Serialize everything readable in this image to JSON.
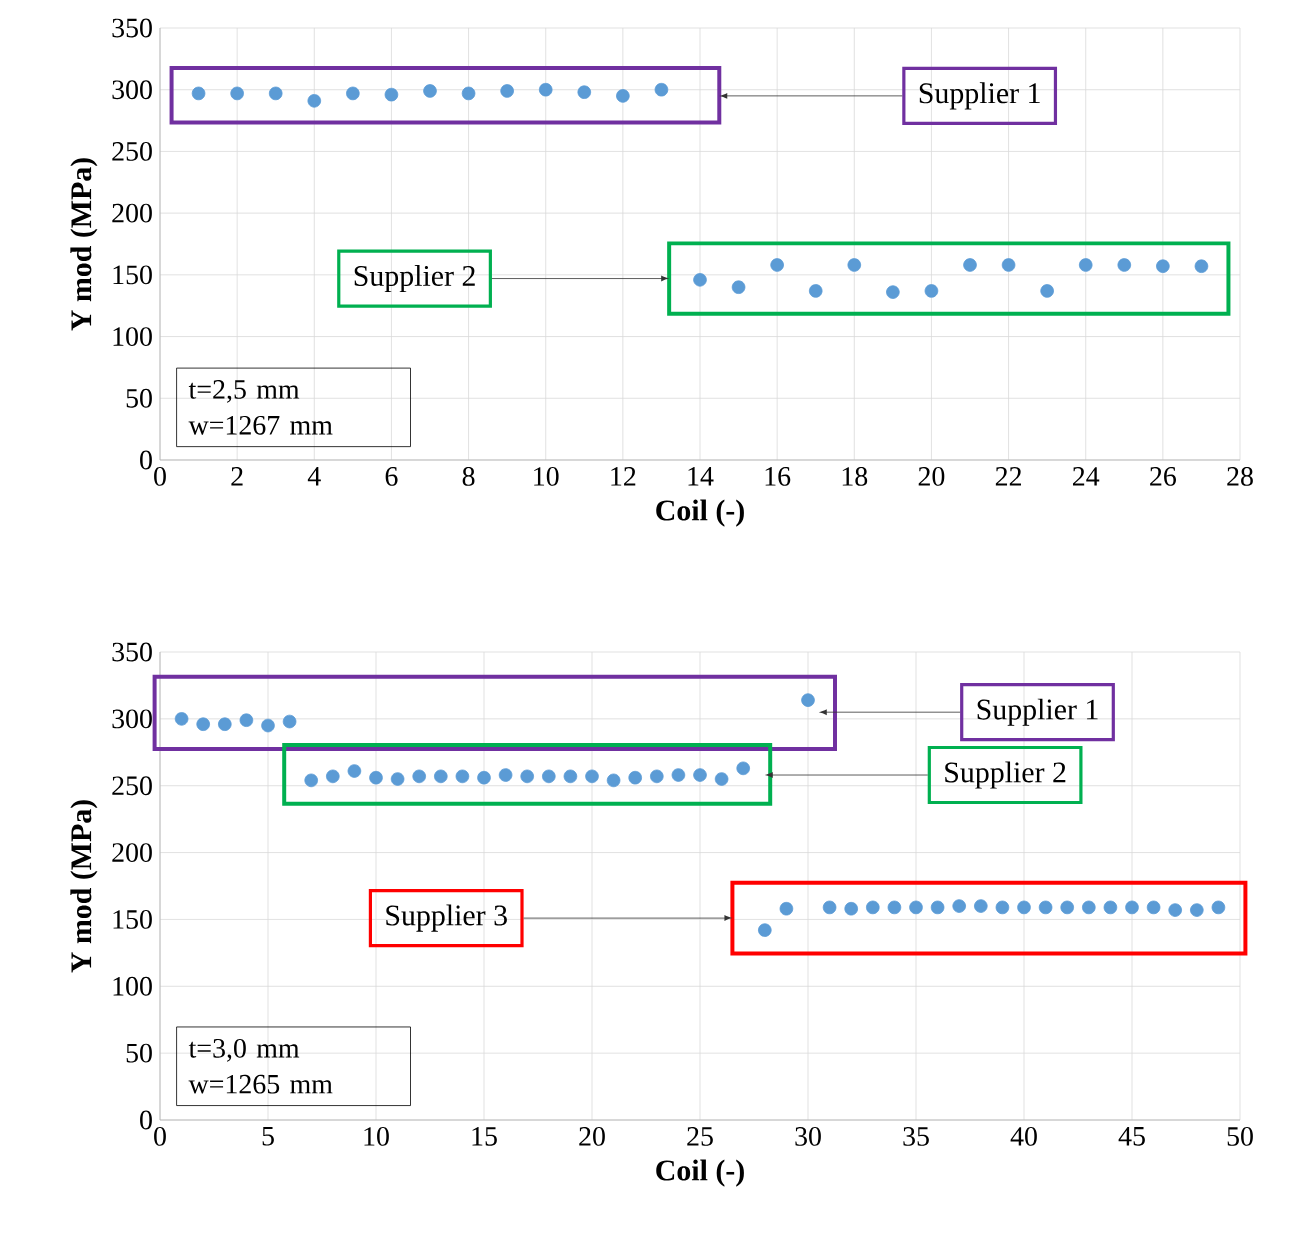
{
  "chart_data": [
    {
      "type": "scatter",
      "xlabel": "Coil (-)",
      "ylabel": "Y mod (MPa)",
      "xlim": [
        0,
        28
      ],
      "ylim": [
        0,
        350
      ],
      "xticks": [
        0,
        2,
        4,
        6,
        8,
        10,
        12,
        14,
        16,
        18,
        20,
        22,
        24,
        26,
        28
      ],
      "yticks": [
        0,
        50,
        100,
        150,
        200,
        250,
        300,
        350
      ],
      "grid": true,
      "marker": "circle",
      "annotations": [
        {
          "text": "Supplier 1",
          "x": 14.5,
          "y": 295
        },
        {
          "text": "Supplier 2",
          "x": 13.2,
          "y": 147
        },
        "t=2,5 mm",
        "w=1267 mm"
      ],
      "series": [
        {
          "color": "#5b9bd5",
          "x": [
            1,
            2,
            3,
            4,
            5,
            6,
            7,
            8,
            9,
            10,
            11,
            12,
            13
          ],
          "values": [
            297,
            297,
            297,
            291,
            297,
            296,
            299,
            297,
            299,
            300,
            298,
            295,
            300
          ]
        },
        {
          "color": "#5b9bd5",
          "x": [
            14,
            15,
            16,
            17,
            18,
            19,
            20,
            21,
            22,
            23,
            24,
            25,
            26,
            27
          ],
          "values": [
            146,
            140,
            158,
            137,
            158,
            136,
            137,
            158,
            158,
            137,
            158,
            158,
            157,
            157
          ]
        }
      ]
    },
    {
      "type": "scatter",
      "xlabel": "Coil (-)",
      "ylabel": "Y mod (MPa)",
      "xlim": [
        0,
        50
      ],
      "ylim": [
        0,
        350
      ],
      "xticks": [
        0,
        5,
        10,
        15,
        20,
        25,
        30,
        35,
        40,
        45,
        50
      ],
      "yticks": [
        0,
        50,
        100,
        150,
        200,
        250,
        300,
        350
      ],
      "grid": true,
      "marker": "circle",
      "annotations": [
        {
          "text": "Supplier 1",
          "x": 30.5,
          "y": 305
        },
        {
          "text": "Supplier 2",
          "x": 28,
          "y": 258
        },
        {
          "text": "Supplier 3",
          "x": 26.5,
          "y": 151
        },
        "t=3,0 mm",
        "w=1265 mm"
      ],
      "series": [
        {
          "color": "#5b9bd5",
          "x": [
            1,
            2,
            3,
            4,
            5,
            6,
            30
          ],
          "values": [
            300,
            296,
            296,
            299,
            295,
            298,
            314
          ]
        },
        {
          "color": "#5b9bd5",
          "x": [
            7,
            8,
            9,
            10,
            11,
            12,
            13,
            14,
            15,
            16,
            17,
            18,
            19,
            20,
            21,
            22,
            23,
            24,
            25,
            26,
            27
          ],
          "values": [
            254,
            257,
            261,
            256,
            255,
            257,
            257,
            257,
            256,
            258,
            257,
            257,
            257,
            257,
            254,
            256,
            257,
            258,
            258,
            255,
            263
          ]
        },
        {
          "color": "#5b9bd5",
          "x": [
            28,
            29,
            31,
            32,
            33,
            34,
            35,
            36,
            37,
            38,
            39,
            40,
            41,
            42,
            43,
            44,
            45,
            46,
            47,
            48,
            49
          ],
          "values": [
            142,
            158,
            159,
            158,
            159,
            159,
            159,
            159,
            160,
            160,
            159,
            159,
            159,
            159,
            159,
            159,
            159,
            159,
            157,
            157,
            159
          ]
        }
      ]
    }
  ]
}
